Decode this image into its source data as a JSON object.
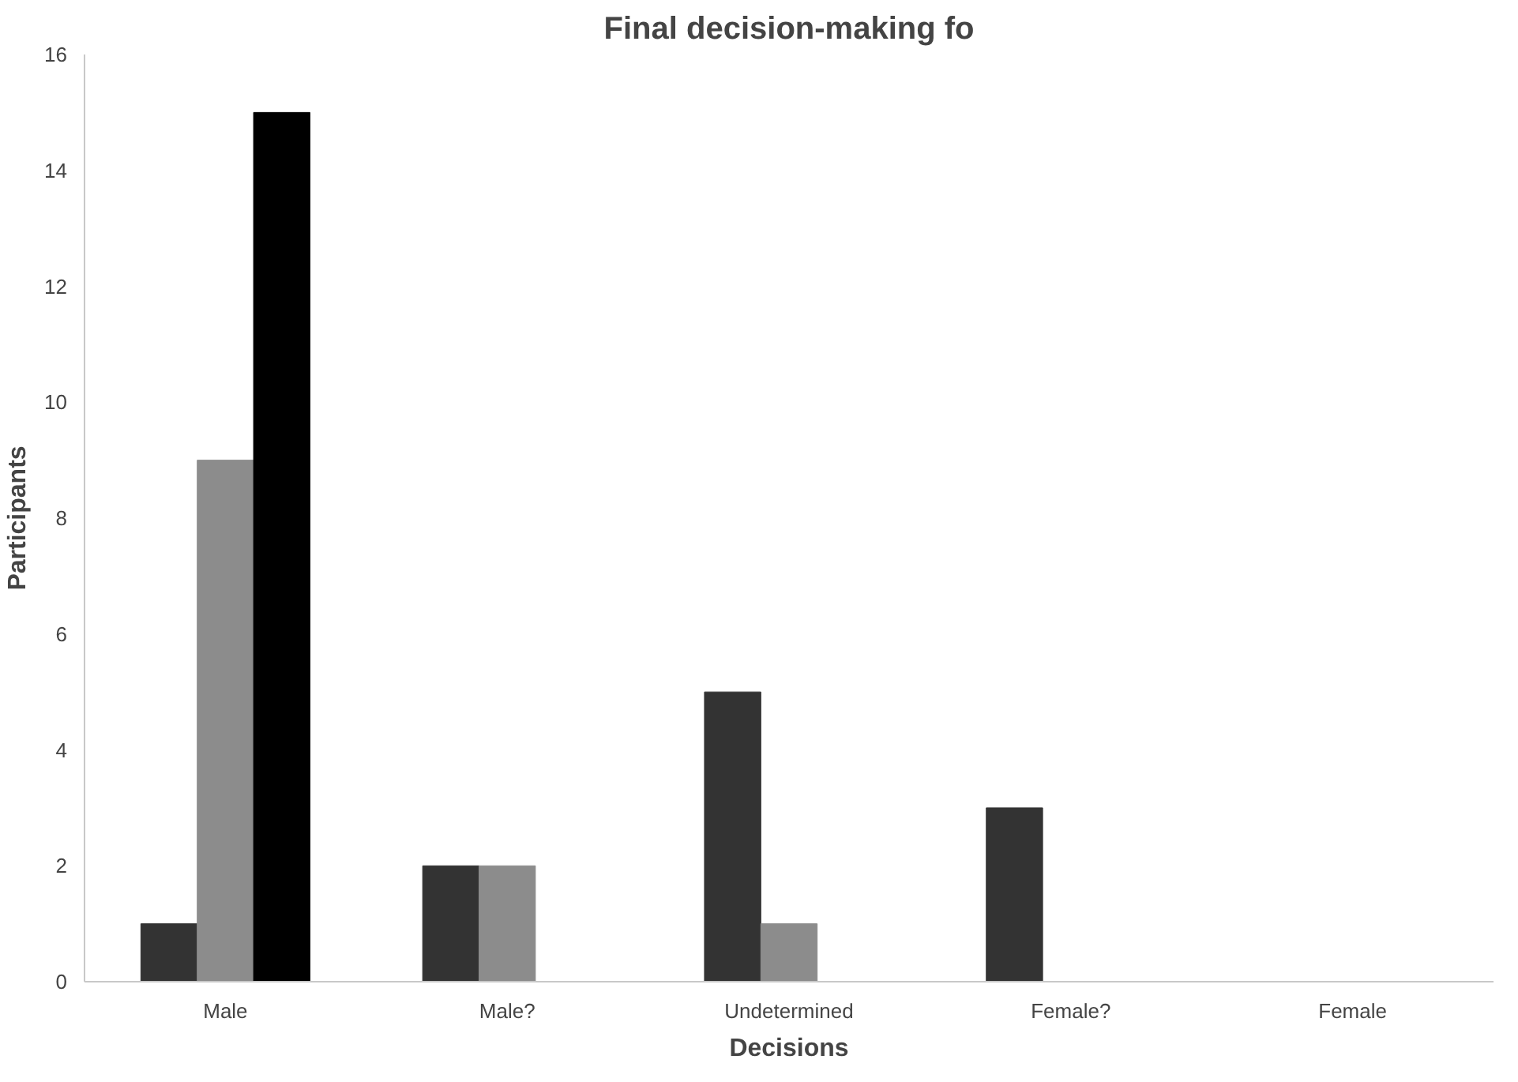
{
  "chart_data": {
    "type": "bar",
    "title": "Final decision-making fo",
    "xlabel": "Decisions",
    "ylabel": "Participants",
    "categories": [
      "Male",
      "Male?",
      "Undetermined",
      "Female?",
      "Female"
    ],
    "series": [
      {
        "color": "#333333",
        "values": [
          1,
          2,
          5,
          3,
          null
        ]
      },
      {
        "color": "#8c8c8c",
        "values": [
          9,
          2,
          1,
          null,
          null
        ]
      },
      {
        "color": "#000000",
        "values": [
          15,
          null,
          null,
          null,
          null
        ]
      }
    ],
    "ylim": [
      0,
      16
    ],
    "yticks": [
      0,
      2,
      4,
      6,
      8,
      10,
      12,
      14,
      16
    ],
    "grid": false
  }
}
